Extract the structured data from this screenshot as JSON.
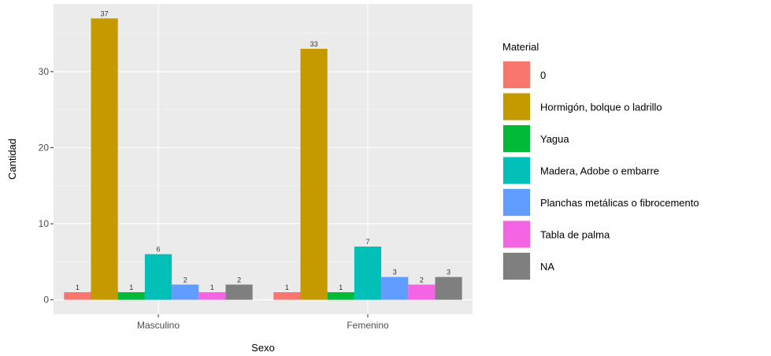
{
  "chart_data": {
    "type": "bar",
    "xlabel": "Sexo",
    "ylabel": "Cantidad",
    "categories": [
      "Masculino",
      "Femenino"
    ],
    "ylim": [
      -1.9,
      38.9
    ],
    "yticks": [
      0,
      10,
      20,
      30
    ],
    "grid": true,
    "legend_position": "right",
    "legend_title": "Material",
    "series": [
      {
        "name": "0",
        "color": "#F8766D",
        "values": [
          1,
          1
        ]
      },
      {
        "name": "Hormigón, bolque o ladrillo",
        "color": "#C49A00",
        "values": [
          37,
          33
        ]
      },
      {
        "name": "Yagua",
        "color": "#00BA38",
        "values": [
          1,
          1
        ]
      },
      {
        "name": "Madera, Adobe o embarre",
        "color": "#00C0B8",
        "values": [
          6,
          7
        ]
      },
      {
        "name": "Planchas metálicas o fibrocemento",
        "color": "#619CFF",
        "values": [
          2,
          3
        ]
      },
      {
        "name": "Tabla de palma",
        "color": "#F564E3",
        "values": [
          1,
          2
        ]
      },
      {
        "name": "NA",
        "color": "#7F7F7F",
        "values": [
          2,
          3
        ]
      }
    ]
  }
}
